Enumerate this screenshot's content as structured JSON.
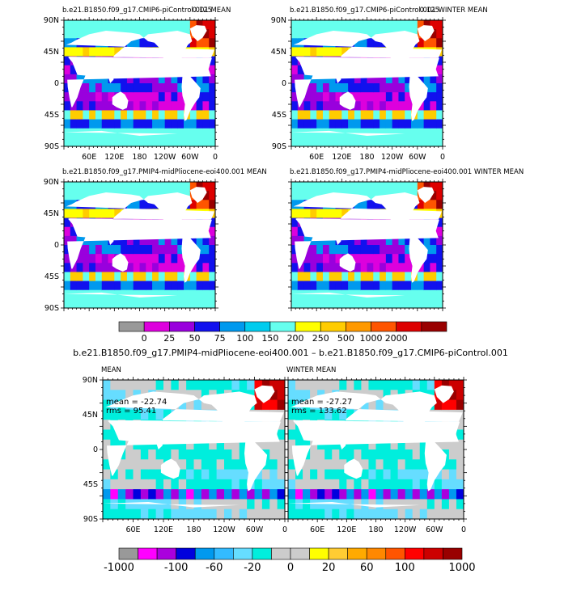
{
  "chart_data": [
    {
      "type": "heatmap",
      "title": "b.e21.B1850.f09_g17.CMIP6-piControl.001 MEAN",
      "corner": "0.125",
      "xticks": [
        "60E",
        "120E",
        "180",
        "120W",
        "60W",
        "0"
      ],
      "yticks": [
        "90N",
        "45N",
        "0",
        "45S",
        "90S"
      ]
    },
    {
      "type": "heatmap",
      "title": "b.e21.B1850.f09_g17.CMIP6-piControl.001 WINTER MEAN",
      "corner": "0.125",
      "xticks": [
        "60E",
        "120E",
        "180",
        "120W",
        "60W",
        "0"
      ],
      "yticks": [
        "90N",
        "45N",
        "0",
        "45S",
        "90S"
      ]
    },
    {
      "type": "heatmap",
      "title": "b.e21.B1850.f09_g17.PMIP4-midPliocene-eoi400.001 MEAN",
      "xticks": [],
      "yticks": [
        "90N",
        "45N",
        "0",
        "45S",
        "90S"
      ]
    },
    {
      "type": "heatmap",
      "title": "b.e21.B1850.f09_g17.PMIP4-midPliocene-eoi400.001 WINTER MEAN",
      "xticks": [],
      "yticks": []
    },
    {
      "type": "heatmap",
      "title": "MEAN",
      "stats": [
        "mean = -22.74",
        "rms = 95.41"
      ],
      "xticks": [
        "60E",
        "120E",
        "180",
        "120W",
        "60W",
        "0"
      ],
      "yticks": [
        "90N",
        "45N",
        "0",
        "45S",
        "90S"
      ]
    },
    {
      "type": "heatmap",
      "title": "WINTER MEAN",
      "stats": [
        "mean = -27.27",
        "rms = 133.62"
      ],
      "xticks": [
        "60E",
        "120E",
        "180",
        "120W",
        "60W",
        "0"
      ],
      "yticks": []
    }
  ],
  "colorbar_top": {
    "labels": [
      "0",
      "25",
      "50",
      "75",
      "100",
      "150",
      "200",
      "250",
      "500",
      "1000",
      "2000"
    ],
    "colors": [
      "#999999",
      "#dd00dd",
      "#9900dd",
      "#1111ee",
      "#0099ee",
      "#00ccee",
      "#66ffee",
      "#ffff00",
      "#ffcc00",
      "#ff9900",
      "#ff5500",
      "#dd0000",
      "#990000"
    ]
  },
  "difference_title": "b.e21.B1850.f09_g17.PMIP4-midPliocene-eoi400.001 – b.e21.B1850.f09_g17.CMIP6-piControl.001",
  "colorbar_bottom": {
    "labels": [
      "-1000",
      "-100",
      "-60",
      "-20",
      "0",
      "20",
      "60",
      "100",
      "1000"
    ],
    "colors": [
      "#999999",
      "#ff00ff",
      "#aa00dd",
      "#0000dd",
      "#0099ee",
      "#33bbff",
      "#66ddff",
      "#00eedd",
      "#cccccc",
      "#cccccc",
      "#ffff00",
      "#ffcc33",
      "#ffaa00",
      "#ff8800",
      "#ff5500",
      "#ff0000",
      "#cc0000",
      "#990000"
    ]
  },
  "palette": {
    "land": "#ffffff",
    "frame": "#000000"
  }
}
